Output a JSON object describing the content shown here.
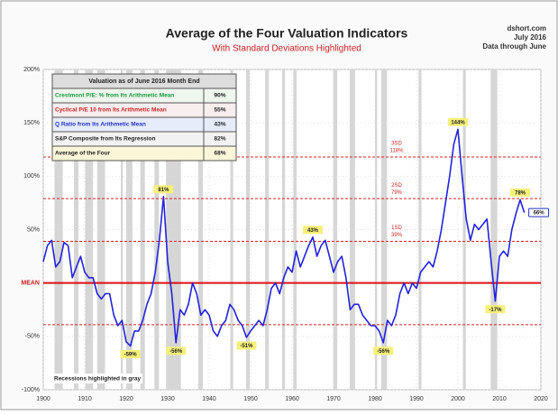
{
  "chart_data": {
    "type": "line",
    "title": "Average of the Four Valuation Indicators",
    "subtitle": "With Standard Deviations Highlighted",
    "source_lines": [
      "dshort.com",
      "July 2016",
      "Data through June"
    ],
    "color": "#2222dd",
    "x": [
      1900,
      1901,
      1902,
      1903,
      1904,
      1905,
      1906,
      1907,
      1908,
      1909,
      1910,
      1911,
      1912,
      1913,
      1914,
      1915,
      1916,
      1917,
      1918,
      1919,
      1920,
      1921,
      1922,
      1923,
      1924,
      1925,
      1926,
      1927,
      1928,
      1929,
      1930,
      1931,
      1932,
      1933,
      1934,
      1935,
      1936,
      1937,
      1938,
      1939,
      1940,
      1941,
      1942,
      1943,
      1944,
      1945,
      1946,
      1947,
      1948,
      1949,
      1950,
      1951,
      1952,
      1953,
      1954,
      1955,
      1956,
      1957,
      1958,
      1959,
      1960,
      1961,
      1962,
      1963,
      1964,
      1965,
      1966,
      1967,
      1968,
      1969,
      1970,
      1971,
      1972,
      1973,
      1974,
      1975,
      1976,
      1977,
      1978,
      1979,
      1980,
      1981,
      1982,
      1983,
      1984,
      1985,
      1986,
      1987,
      1988,
      1989,
      1990,
      1991,
      1992,
      1993,
      1994,
      1995,
      1996,
      1997,
      1998,
      1999,
      2000,
      2001,
      2002,
      2003,
      2004,
      2005,
      2006,
      2007,
      2008,
      2009,
      2010,
      2011,
      2012,
      2013,
      2014,
      2015,
      2016
    ],
    "values": [
      20,
      35,
      40,
      15,
      20,
      38,
      35,
      5,
      15,
      25,
      10,
      5,
      5,
      -10,
      -15,
      -10,
      -10,
      -30,
      -40,
      -35,
      -55,
      -59,
      -45,
      -45,
      -35,
      -20,
      -10,
      10,
      40,
      81,
      20,
      -10,
      -56,
      -25,
      -30,
      -20,
      0,
      -10,
      -30,
      -25,
      -30,
      -45,
      -50,
      -40,
      -35,
      -20,
      -25,
      -35,
      -40,
      -51,
      -45,
      -40,
      -35,
      -40,
      -25,
      -5,
      0,
      -10,
      5,
      15,
      10,
      30,
      15,
      25,
      35,
      43,
      25,
      35,
      40,
      25,
      10,
      20,
      25,
      5,
      -25,
      -20,
      -20,
      -30,
      -35,
      -40,
      -40,
      -45,
      -56,
      -35,
      -40,
      -30,
      -10,
      0,
      -10,
      0,
      -5,
      10,
      15,
      20,
      15,
      30,
      50,
      75,
      100,
      130,
      144,
      100,
      60,
      40,
      55,
      50,
      55,
      60,
      20,
      -17,
      25,
      30,
      25,
      50,
      65,
      78,
      66
    ],
    "xlim": [
      1900,
      2020
    ],
    "xticks": [
      1900,
      1910,
      1920,
      1930,
      1940,
      1950,
      1960,
      1970,
      1980,
      1990,
      2000,
      2010,
      2020
    ],
    "ylim": [
      -100,
      200
    ],
    "yticks": [
      {
        "value": -100,
        "label": "-100%"
      },
      {
        "value": -50,
        "label": "-50%"
      },
      {
        "value": 0,
        "label": "MEAN"
      },
      {
        "value": 50,
        "label": "50%"
      },
      {
        "value": 100,
        "label": "100%"
      },
      {
        "value": 150,
        "label": "150%"
      },
      {
        "value": 200,
        "label": "200%"
      }
    ],
    "grid": true,
    "reference_lines": [
      {
        "value": 118,
        "label": "3SD",
        "value_label": "118%"
      },
      {
        "value": 79,
        "label": "2SD",
        "value_label": "79%"
      },
      {
        "value": 39,
        "label": "1SD",
        "value_label": "39%"
      },
      {
        "value": -39
      }
    ],
    "annotations": [
      {
        "x": 1921,
        "y": -59,
        "label": "-59%"
      },
      {
        "x": 1929,
        "y": 81,
        "label": "81%"
      },
      {
        "x": 1932,
        "y": -56,
        "label": "-56%"
      },
      {
        "x": 1949,
        "y": -51,
        "label": "-51%"
      },
      {
        "x": 1965,
        "y": 43,
        "label": "43%"
      },
      {
        "x": 1982,
        "y": -56,
        "label": "-56%"
      },
      {
        "x": 2000,
        "y": 144,
        "label": "144%"
      },
      {
        "x": 2009,
        "y": -17,
        "label": "-17%"
      },
      {
        "x": 2015,
        "y": 78,
        "label": "78%"
      },
      {
        "x": 2016,
        "y": 66,
        "label": "66%",
        "position": "right"
      }
    ],
    "recessions": [
      [
        1902.7,
        1904.7
      ],
      [
        1907.4,
        1908.5
      ],
      [
        1910.1,
        1912.0
      ],
      [
        1913.0,
        1914.9
      ],
      [
        1918.7,
        1919.2
      ],
      [
        1920.0,
        1921.5
      ],
      [
        1923.4,
        1924.5
      ],
      [
        1926.8,
        1927.9
      ],
      [
        1929.6,
        1933.2
      ],
      [
        1937.4,
        1938.5
      ],
      [
        1945.1,
        1945.8
      ],
      [
        1948.9,
        1949.8
      ],
      [
        1953.5,
        1954.4
      ],
      [
        1957.6,
        1958.3
      ],
      [
        1960.3,
        1961.1
      ],
      [
        1969.9,
        1970.9
      ],
      [
        1973.9,
        1975.2
      ],
      [
        1980.0,
        1980.5
      ],
      [
        1981.5,
        1982.9
      ],
      [
        1990.5,
        1991.2
      ],
      [
        2001.2,
        2001.9
      ],
      [
        2007.9,
        2009.5
      ]
    ],
    "recession_note": "Recessions highlighted in gray",
    "table": {
      "title": "Valuation as of June 2016 Month End",
      "rows": [
        [
          "Crestmont P/E: % from Its Arithmetic Mean",
          "90%"
        ],
        [
          "Cyclical P/E 10 from Its Arithmetic Mean",
          "55%"
        ],
        [
          "Q Ratio from Its Arithmetic Mean",
          "43%"
        ],
        [
          "S&P Composite from Its Regression",
          "82%"
        ],
        [
          "Average of the Four",
          "68%"
        ]
      ],
      "row_colors": [
        "#1a9a3a",
        "#cc2222",
        "#2233cc",
        "#222222",
        "#222222"
      ],
      "row_fills": [
        "#eef6ee",
        "#f8eeee",
        "#e6ecfa",
        "#f2f2f2",
        "#fbf6d8"
      ]
    }
  }
}
